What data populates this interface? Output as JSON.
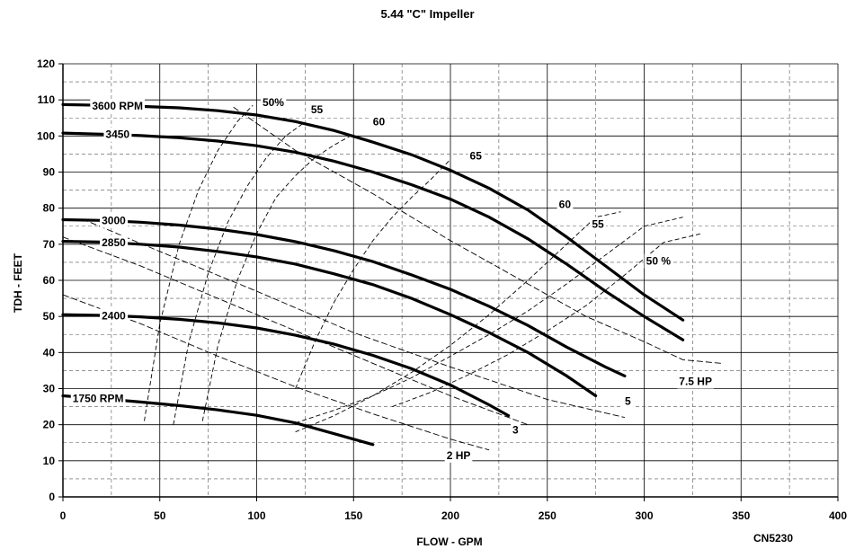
{
  "chart_data": {
    "type": "line",
    "title": "5.44 \"C\" Impeller",
    "xlabel": "FLOW - GPM",
    "ylabel": "TDH - FEET",
    "code": "CN5230",
    "xlim": [
      0,
      400
    ],
    "ylim": [
      0,
      120
    ],
    "xticks": [
      "0",
      "50",
      "100",
      "150",
      "200",
      "250",
      "300",
      "350",
      "400"
    ],
    "yticks": [
      "0",
      "10",
      "20",
      "30",
      "40",
      "50",
      "60",
      "70",
      "80",
      "90",
      "100",
      "110",
      "120"
    ],
    "grid": true,
    "speed_curves": [
      {
        "name": "3600 RPM",
        "x": [
          0,
          20,
          40,
          60,
          80,
          100,
          120,
          140,
          160,
          180,
          200,
          220,
          240,
          260,
          280,
          300,
          320
        ],
        "y": [
          108.7,
          108.5,
          108.2,
          107.8,
          107,
          105.8,
          104,
          101.5,
          98.3,
          94.8,
          90.5,
          85.5,
          79.5,
          72,
          64,
          56,
          49
        ]
      },
      {
        "name": "3450",
        "x": [
          0,
          20,
          40,
          60,
          80,
          100,
          120,
          140,
          160,
          180,
          200,
          220,
          240,
          260,
          280,
          300,
          320
        ],
        "y": [
          100.8,
          100.5,
          100.1,
          99.5,
          98.6,
          97.3,
          95.5,
          93,
          90,
          86.5,
          82.5,
          77.5,
          71.5,
          64.5,
          57,
          50,
          43.5
        ]
      },
      {
        "name": "3000",
        "x": [
          0,
          20,
          40,
          60,
          80,
          100,
          120,
          140,
          160,
          180,
          200,
          220,
          240,
          260,
          280,
          290
        ],
        "y": [
          76.8,
          76.6,
          76.1,
          75.3,
          74.2,
          72.7,
          70.7,
          68.2,
          65.2,
          61.5,
          57.5,
          52.8,
          47.5,
          41.5,
          36,
          33.5
        ]
      },
      {
        "name": "2850",
        "x": [
          0,
          20,
          40,
          60,
          80,
          100,
          120,
          140,
          160,
          180,
          200,
          220,
          240,
          260,
          275
        ],
        "y": [
          70.8,
          70.6,
          70,
          69.2,
          68,
          66.5,
          64.5,
          61.8,
          58.8,
          55,
          50.5,
          45.5,
          40,
          33.5,
          28
        ]
      },
      {
        "name": "2400",
        "x": [
          0,
          20,
          40,
          60,
          80,
          100,
          120,
          140,
          160,
          180,
          200,
          220,
          230
        ],
        "y": [
          50.5,
          50.3,
          49.9,
          49.2,
          48.2,
          46.8,
          44.8,
          42.3,
          39.2,
          35.5,
          31,
          25.5,
          22.5
        ]
      },
      {
        "name": "1750 RPM",
        "x": [
          0,
          20,
          40,
          60,
          80,
          100,
          120,
          140,
          160
        ],
        "y": [
          28,
          27.2,
          26.3,
          25.3,
          24.1,
          22.6,
          20.5,
          17.5,
          14.5
        ]
      }
    ],
    "efficiency_lines": [
      {
        "name": "50%",
        "x": [
          42,
          50,
          60,
          70,
          80,
          90,
          98
        ],
        "y": [
          21,
          48,
          70,
          85,
          96,
          104,
          108.5
        ]
      },
      {
        "name": "55",
        "x": [
          57,
          65,
          75,
          85,
          95,
          105,
          115,
          124
        ],
        "y": [
          20,
          43,
          62,
          76,
          86,
          94,
          100,
          103.5
        ]
      },
      {
        "name": "60",
        "x": [
          72,
          80,
          90,
          100,
          110,
          120,
          130,
          140,
          150
        ],
        "y": [
          21,
          42,
          60,
          73,
          83,
          89,
          94,
          97.5,
          100.5
        ]
      },
      {
        "name": "65",
        "x": [
          120,
          130,
          140,
          150,
          160,
          170,
          180,
          190,
          200
        ],
        "y": [
          30,
          43,
          54,
          63,
          71,
          77.5,
          83,
          88,
          93.5
        ]
      },
      {
        "name": "60",
        "x": [
          120,
          140,
          160,
          180,
          200,
          220,
          240,
          260,
          275,
          288
        ],
        "y": [
          18,
          22.5,
          28,
          34.5,
          42,
          50.5,
          60,
          70,
          77.5,
          79
        ]
      },
      {
        "name": "55",
        "x": [
          120,
          140,
          160,
          180,
          200,
          220,
          240,
          260,
          280,
          300,
          320
        ],
        "y": [
          20.5,
          24,
          28,
          33,
          39,
          45,
          51.5,
          59,
          67,
          75,
          77.5
        ]
      },
      {
        "name": "50 %",
        "x": [
          170,
          190,
          210,
          230,
          250,
          270,
          290,
          310,
          330
        ],
        "y": [
          25,
          29,
          34,
          39.5,
          46,
          53,
          61.5,
          70.5,
          73
        ]
      }
    ],
    "hp_lines": [
      {
        "name": "7.5 HP",
        "x": [
          88,
          120,
          160,
          200,
          240,
          270,
          300,
          320,
          340
        ],
        "y": [
          108,
          96,
          84,
          71,
          59,
          50,
          43,
          38,
          37
        ]
      },
      {
        "name": "5",
        "x": [
          10,
          50,
          100,
          150,
          200,
          250,
          290
        ],
        "y": [
          77,
          68,
          57,
          45.5,
          36,
          27,
          22
        ]
      },
      {
        "name": "3",
        "x": [
          0,
          40,
          80,
          120,
          160,
          200,
          240
        ],
        "y": [
          72,
          64,
          55,
          46,
          37,
          28,
          20
        ]
      },
      {
        "name": "2 HP",
        "x": [
          0,
          40,
          80,
          120,
          160,
          200,
          220
        ],
        "y": [
          56,
          48,
          39,
          30.5,
          23,
          16,
          13
        ]
      }
    ],
    "speed_label_ascii": [
      "3600 RPM",
      "3450",
      "3000",
      "2850",
      "2400",
      "1750 RPM"
    ],
    "hp_labels": [
      "7.5 HP",
      "5",
      "3",
      "2 HP"
    ],
    "eff_labels": [
      "50%",
      "55",
      "60",
      "65",
      "60",
      "55",
      "50 %"
    ]
  }
}
